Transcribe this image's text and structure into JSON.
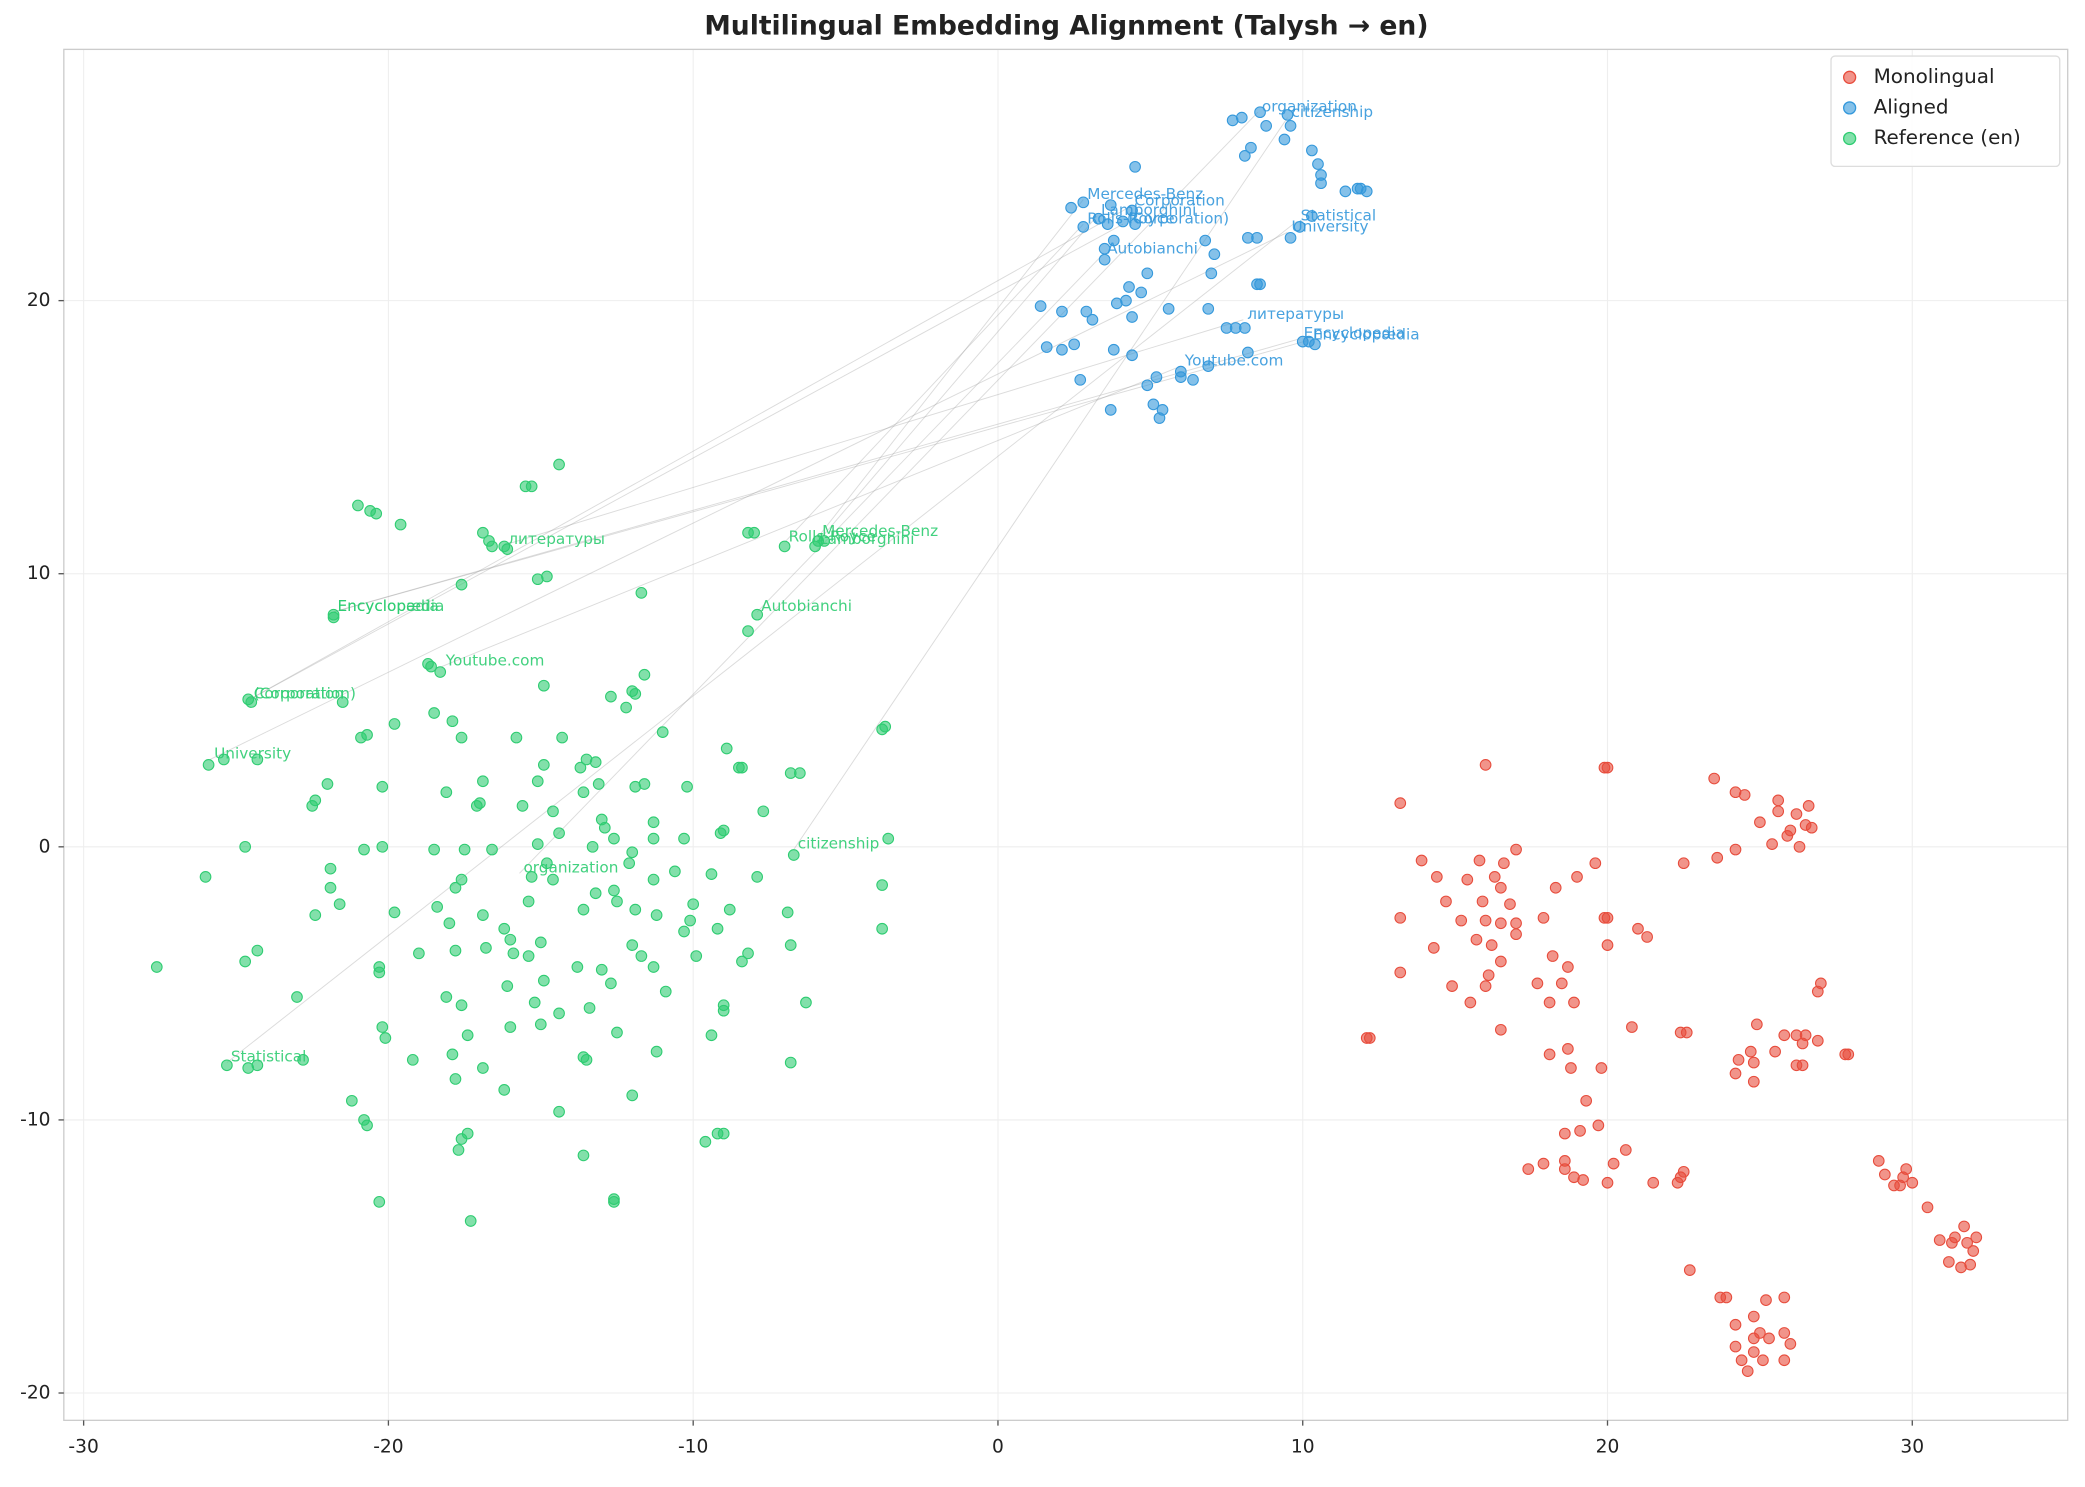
{
  "chart_data": {
    "type": "scatter",
    "title": "Multilingual Embedding Alignment (Talysh → en)",
    "xlim": [
      -30.65,
      35.1
    ],
    "ylim": [
      -21.0,
      29.2
    ],
    "xticks": [
      -30,
      -20,
      -10,
      0,
      10,
      20,
      30
    ],
    "yticks": [
      -20,
      -10,
      0,
      10,
      20
    ],
    "grid": true,
    "legend": "upper right",
    "series": [
      {
        "name": "Monolingual",
        "color": "#e74c3c",
        "x": [
          16.0,
          19.9,
          20.0,
          13.2,
          23.5,
          24.2,
          24.5,
          25.6,
          25.6,
          26.2,
          26.6,
          25.0,
          26.5,
          26.7,
          25.9,
          26.0,
          25.4,
          26.3,
          24.2,
          23.6,
          22.5,
          17.0,
          16.6,
          15.8,
          13.9,
          14.4,
          15.4,
          16.3,
          16.5,
          18.3,
          19.0,
          19.6,
          14.7,
          15.9,
          16.8,
          13.2,
          15.2,
          16.0,
          16.5,
          17.0,
          17.9,
          19.9,
          20.0,
          21.0,
          21.3,
          15.7,
          16.2,
          17.0,
          14.3,
          20.0,
          16.5,
          18.2,
          18.7,
          13.2,
          16.1,
          14.9,
          15.5,
          16.0,
          17.7,
          18.5,
          18.1,
          18.9,
          27.0,
          26.9,
          12.1,
          12.2,
          16.5,
          20.8,
          22.4,
          22.6,
          24.9,
          25.8,
          26.2,
          26.5,
          26.4,
          26.9,
          27.8,
          27.9,
          18.1,
          18.7,
          24.7,
          25.5,
          24.3,
          24.8,
          26.2,
          26.4,
          18.8,
          19.8,
          24.2,
          24.8,
          19.3,
          18.6,
          19.7,
          19.1,
          20.6,
          20.2,
          18.6,
          18.6,
          17.9,
          17.4,
          18.9,
          19.2,
          20.0,
          21.5,
          22.3,
          22.4,
          22.5,
          28.9,
          29.1,
          29.4,
          29.6,
          29.8,
          29.7,
          30.0,
          30.5,
          30.9,
          31.3,
          31.4,
          31.7,
          31.8,
          32.1,
          32.0,
          31.2,
          31.6,
          31.9,
          22.7,
          23.7,
          23.9,
          25.2,
          25.8,
          24.8,
          24.2,
          25.0,
          25.8,
          24.8,
          25.3,
          24.2,
          24.8,
          26.0,
          25.1,
          24.4,
          25.8,
          24.6
        ],
        "values": [
          3.0,
          2.9,
          2.9,
          1.6,
          2.5,
          2.0,
          1.9,
          1.7,
          1.3,
          1.2,
          1.5,
          0.9,
          0.8,
          0.7,
          0.4,
          0.6,
          0.1,
          0.0,
          -0.1,
          -0.4,
          -0.6,
          -0.1,
          -0.6,
          -0.5,
          -0.5,
          -1.1,
          -1.2,
          -1.1,
          -1.5,
          -1.5,
          -1.1,
          -0.6,
          -2.0,
          -2.0,
          -2.1,
          -2.6,
          -2.7,
          -2.7,
          -2.8,
          -2.8,
          -2.6,
          -2.6,
          -2.6,
          -3.0,
          -3.3,
          -3.4,
          -3.6,
          -3.2,
          -3.7,
          -3.6,
          -4.2,
          -4.0,
          -4.4,
          -4.6,
          -4.7,
          -5.1,
          -5.7,
          -5.1,
          -5.0,
          -5.0,
          -5.7,
          -5.7,
          -5.0,
          -5.3,
          -7.0,
          -7.0,
          -6.7,
          -6.6,
          -6.8,
          -6.8,
          -6.5,
          -6.9,
          -6.9,
          -6.9,
          -7.2,
          -7.1,
          -7.6,
          -7.6,
          -7.6,
          -7.4,
          -7.5,
          -7.5,
          -7.8,
          -7.9,
          -8.0,
          -8.0,
          -8.1,
          -8.1,
          -8.3,
          -8.6,
          -9.3,
          -10.5,
          -10.2,
          -10.4,
          -11.1,
          -11.6,
          -11.5,
          -11.8,
          -11.6,
          -11.8,
          -12.1,
          -12.2,
          -12.3,
          -12.3,
          -12.3,
          -12.1,
          -11.9,
          -11.5,
          -12.0,
          -12.4,
          -12.4,
          -11.8,
          -12.1,
          -12.3,
          -13.2,
          -14.4,
          -14.5,
          -14.3,
          -13.9,
          -14.5,
          -14.3,
          -14.8,
          -15.2,
          -15.4,
          -15.3,
          -15.5,
          -16.5,
          -16.5,
          -16.6,
          -16.5,
          -17.2,
          -17.5,
          -17.8,
          -17.8,
          -18.0,
          -18.0,
          -18.3,
          -18.5,
          -18.2,
          -18.8,
          -18.8,
          -18.8,
          -19.2
        ]
      },
      {
        "name": "Aligned",
        "color": "#3498db",
        "x": [
          8.0,
          7.7,
          8.6,
          9.5,
          9.6,
          8.8,
          9.4,
          8.3,
          8.1,
          10.3,
          10.5,
          10.6,
          10.6,
          11.4,
          11.8,
          12.1,
          11.9,
          4.5,
          2.4,
          2.8,
          3.7,
          4.4,
          3.3,
          3.6,
          2.8,
          4.1,
          4.5,
          3.8,
          3.5,
          3.5,
          6.8,
          7.1,
          8.2,
          8.5,
          9.6,
          9.9,
          10.3,
          4.9,
          7.0,
          4.3,
          4.7,
          8.5,
          8.6,
          1.4,
          2.1,
          2.9,
          3.1,
          3.9,
          4.2,
          4.4,
          5.6,
          6.9,
          7.5,
          7.8,
          8.1,
          1.6,
          2.1,
          2.5,
          3.8,
          4.4,
          8.2,
          10.0,
          10.2,
          10.4,
          2.7,
          4.9,
          5.2,
          6.0,
          6.0,
          6.4,
          6.9,
          3.7,
          5.1,
          5.4,
          5.3
        ],
        "values": [
          26.7,
          26.6,
          26.9,
          26.8,
          26.4,
          26.4,
          25.9,
          25.6,
          25.3,
          25.5,
          25.0,
          24.6,
          24.3,
          24.0,
          24.1,
          24.0,
          24.1,
          24.9,
          23.4,
          23.6,
          23.5,
          23.3,
          23.0,
          22.8,
          22.7,
          22.9,
          22.8,
          22.2,
          21.9,
          21.5,
          22.2,
          21.7,
          22.3,
          22.3,
          22.3,
          22.7,
          23.1,
          21.0,
          21.0,
          20.5,
          20.3,
          20.6,
          20.6,
          19.8,
          19.6,
          19.6,
          19.3,
          19.9,
          20.0,
          19.4,
          19.7,
          19.7,
          19.0,
          19.0,
          19.0,
          18.3,
          18.2,
          18.4,
          18.2,
          18.0,
          18.1,
          18.5,
          18.5,
          18.4,
          17.1,
          16.9,
          17.2,
          17.2,
          17.4,
          17.1,
          17.6,
          16.0,
          16.2,
          16.0,
          15.7
        ],
        "annotations": [
          {
            "text": "organization",
            "x": 8.53,
            "y": 26.9
          },
          {
            "text": "citizenship",
            "x": 9.5,
            "y": 26.7
          },
          {
            "text": "Mercedes-Benz",
            "x": 2.8,
            "y": 23.7
          },
          {
            "text": "Corporation",
            "x": 4.35,
            "y": 23.45
          },
          {
            "text": "Lamborghini",
            "x": 3.25,
            "y": 23.1
          },
          {
            "text": "Rolls-Royce",
            "x": 2.8,
            "y": 22.8
          },
          {
            "text": "(Corporation)",
            "x": 4.1,
            "y": 22.8
          },
          {
            "text": "Statistical",
            "x": 9.8,
            "y": 22.9
          },
          {
            "text": "University",
            "x": 9.5,
            "y": 22.5
          },
          {
            "text": "Autobianchi",
            "x": 3.45,
            "y": 21.7
          },
          {
            "text": "литературы",
            "x": 8.05,
            "y": 19.3
          },
          {
            "text": "Encyclopedia",
            "x": 9.9,
            "y": 18.6
          },
          {
            "text": "Encyclopædia",
            "x": 10.2,
            "y": 18.55
          },
          {
            "text": "Youtube.com",
            "x": 6.0,
            "y": 17.6
          }
        ]
      },
      {
        "name": "Reference (en)",
        "color": "#2ecc71",
        "x": [
          -21,
          -20.6,
          -20.4,
          -19.6,
          -15.5,
          -15.3,
          -14.4,
          -16.9,
          -16.7,
          -16.6,
          -16.1,
          -16.2,
          -17.6,
          -15.1,
          -14.8,
          -11.7,
          -8.2,
          -8.0,
          -7.0,
          -6.0,
          -5.9,
          -5.7,
          -21.8,
          -21.8,
          -7.9,
          -8.2,
          -18.7,
          -18.6,
          -18.3,
          -14.9,
          -11.6,
          -12.0,
          -11.9,
          -12.7,
          -12.2,
          -24.6,
          -24.5,
          -21.5,
          -19.8,
          -18.5,
          -17.9,
          -17.6,
          -20.9,
          -20.7,
          -15.8,
          -14.3,
          -11.0,
          -8.9,
          -3.8,
          -3.7,
          -25.9,
          -25.4,
          -24.3,
          -22.0,
          -22.4,
          -22.5,
          -20.2,
          -18.1,
          -16.9,
          -15.1,
          -14.9,
          -13.5,
          -13.2,
          -13.7,
          -13.6,
          -13.1,
          -11.9,
          -11.6,
          -10.2,
          -8.5,
          -8.4,
          -6.8,
          -6.5,
          -17.1,
          -17.0,
          -15.6,
          -14.6,
          -13.0,
          -12.9,
          -11.3,
          -9.1,
          -9.0,
          -7.7,
          -24.7,
          -26.0,
          -21.9,
          -21.9,
          -21.6,
          -22.4,
          -20.8,
          -20.2,
          -18.5,
          -17.5,
          -16.6,
          -15.3,
          -15.1,
          -14.4,
          -13.3,
          -12.6,
          -12.1,
          -12.0,
          -11.3,
          -10.3,
          -3.6,
          -6.7,
          -24.3,
          -24.7,
          -27.6,
          -19.8,
          -18.4,
          -18.0,
          -17.8,
          -17.6,
          -16.9,
          -16.8,
          -16.2,
          -16.0,
          -15.9,
          -15.4,
          -14.8,
          -14.6,
          -13.6,
          -13.2,
          -12.6,
          -12.5,
          -11.9,
          -11.3,
          -11.2,
          -10.6,
          -10.0,
          -10.1,
          -9.4,
          -8.8,
          -7.9,
          -6.9,
          -3.8,
          -3.8,
          -20.3,
          -20.3,
          -19.0,
          -17.8,
          -16.1,
          -15.4,
          -15.0,
          -14.9,
          -14.4,
          -13.8,
          -13.4,
          -13.0,
          -12.7,
          -12.0,
          -11.7,
          -11.3,
          -10.9,
          -10.3,
          -9.9,
          -9.2,
          -8.4,
          -8.2,
          -6.8,
          -6.3,
          -18.1,
          -17.6,
          -17.4,
          -16.0,
          -15.2,
          -15.0,
          -13.6,
          -13.5,
          -12.5,
          -11.2,
          -9.0,
          -9.0,
          -9.4,
          -6.8,
          -23.0,
          -22.8,
          -20.2,
          -20.1,
          -19.2,
          -17.9,
          -17.8,
          -16.9,
          -16.2,
          -14.4,
          -12.0,
          -25.3,
          -24.6,
          -24.3,
          -21.2,
          -20.8,
          -20.7,
          -17.6,
          -17.4,
          -17.7,
          -13.6,
          -9.6,
          -9.2,
          -9.0,
          -20.3,
          -17.3,
          -12.6,
          -12.6
        ],
        "values": [
          12.5,
          12.3,
          12.2,
          11.8,
          13.2,
          13.2,
          14.0,
          11.5,
          11.2,
          11.0,
          10.9,
          11.0,
          9.6,
          9.8,
          9.9,
          9.3,
          11.5,
          11.5,
          11.0,
          11.0,
          11.2,
          11.2,
          8.5,
          8.4,
          8.5,
          7.9,
          6.7,
          6.6,
          6.4,
          5.9,
          6.3,
          5.7,
          5.6,
          5.5,
          5.1,
          5.4,
          5.3,
          5.3,
          4.5,
          4.9,
          4.6,
          4.0,
          4.0,
          4.1,
          4.0,
          4.0,
          4.2,
          3.6,
          4.3,
          4.4,
          3.0,
          3.2,
          3.2,
          2.3,
          1.7,
          1.5,
          2.2,
          2.0,
          2.4,
          2.4,
          3.0,
          3.2,
          3.1,
          2.9,
          2.0,
          2.3,
          2.2,
          2.3,
          2.2,
          2.9,
          2.9,
          2.7,
          2.7,
          1.5,
          1.6,
          1.5,
          1.3,
          1.0,
          0.7,
          0.9,
          0.5,
          0.6,
          1.3,
          0.0,
          -1.1,
          -0.8,
          -1.5,
          -2.1,
          -2.5,
          -0.1,
          0.0,
          -0.1,
          -0.1,
          -0.1,
          -1.1,
          0.1,
          0.5,
          0.0,
          0.3,
          -0.6,
          -0.2,
          0.3,
          0.3,
          0.3,
          -0.3,
          -3.8,
          -4.2,
          -4.4,
          -2.4,
          -2.2,
          -2.8,
          -1.5,
          -1.2,
          -2.5,
          -3.7,
          -3.0,
          -3.4,
          -3.9,
          -2.0,
          -0.6,
          -1.2,
          -2.3,
          -1.7,
          -1.6,
          -2.0,
          -2.3,
          -1.2,
          -2.5,
          -0.9,
          -2.1,
          -2.7,
          -1.0,
          -2.3,
          -1.1,
          -2.4,
          -1.4,
          -3.0,
          -4.4,
          -4.6,
          -3.9,
          -3.8,
          -5.1,
          -4.0,
          -3.5,
          -4.9,
          -6.1,
          -4.4,
          -5.9,
          -4.5,
          -5.0,
          -3.6,
          -4.0,
          -4.4,
          -5.3,
          -3.1,
          -4.0,
          -3.0,
          -4.2,
          -3.9,
          -3.6,
          -5.7,
          -5.5,
          -5.8,
          -6.9,
          -6.6,
          -5.7,
          -6.5,
          -7.7,
          -7.8,
          -6.8,
          -7.5,
          -5.8,
          -6.0,
          -6.9,
          -7.9,
          -5.5,
          -7.8,
          -6.6,
          -7.0,
          -7.8,
          -7.6,
          -8.5,
          -8.1,
          -8.9,
          -9.7,
          -9.1,
          -8.0,
          -8.1,
          -8.0,
          -9.3,
          -10.0,
          -10.2,
          -10.7,
          -10.5,
          -11.1,
          -11.3,
          -10.8,
          -10.5,
          -10.5,
          -13.0,
          -13.7,
          -12.9,
          -13.0
        ],
        "annotations": [
          {
            "text": "литературы",
            "x": -16.2,
            "y": 11.05
          },
          {
            "text": "Mercedes-Benz",
            "x": -5.9,
            "y": 11.35
          },
          {
            "text": "Rolls-Royce",
            "x": -7.0,
            "y": 11.15
          },
          {
            "text": "Lamborghini",
            "x": -6.0,
            "y": 11.05
          },
          {
            "text": "Encyclopedia",
            "x": -21.8,
            "y": 8.6
          },
          {
            "text": "Encyclopædia",
            "x": -21.8,
            "y": 8.6
          },
          {
            "text": "Autobianchi",
            "x": -7.9,
            "y": 8.6
          },
          {
            "text": "Youtube.com",
            "x": -18.25,
            "y": 6.6
          },
          {
            "text": "Corporation",
            "x": -24.55,
            "y": 5.4
          },
          {
            "text": "(Corporation)",
            "x": -24.55,
            "y": 5.4
          },
          {
            "text": "University",
            "x": -25.85,
            "y": 3.2
          },
          {
            "text": "citizenship",
            "x": -6.7,
            "y": -0.1
          },
          {
            "text": "organization",
            "x": -15.7,
            "y": -0.97
          },
          {
            "text": "Statistical",
            "x": -25.3,
            "y": -7.9
          }
        ]
      }
    ]
  }
}
